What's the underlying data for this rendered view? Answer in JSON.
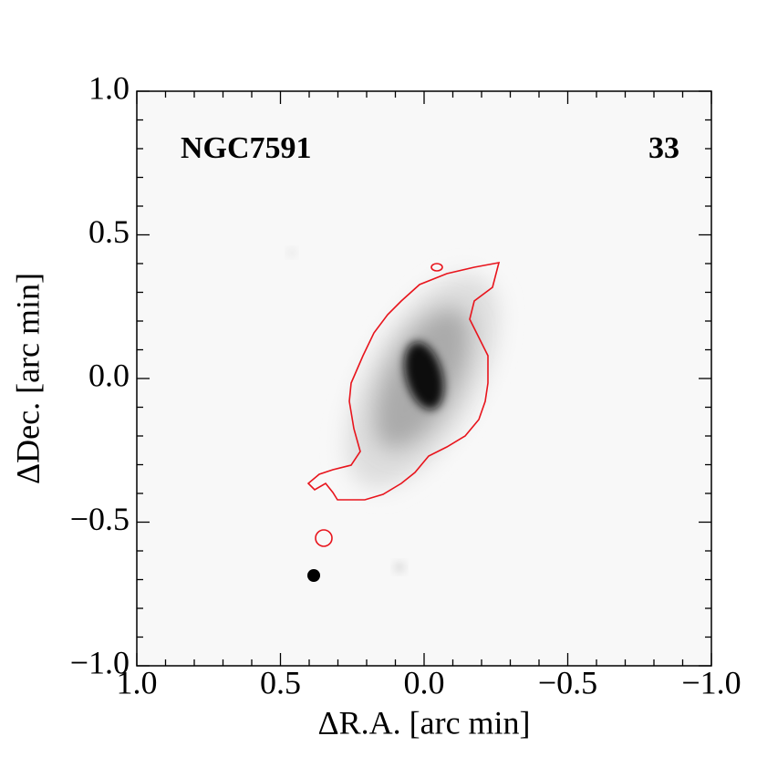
{
  "chart_data": {
    "type": "image",
    "title": "NGC7591",
    "annotation": "33",
    "xlabel": "ΔR.A. [arc min]",
    "ylabel": "ΔDec. [arc min]",
    "xlim": [
      1,
      -1
    ],
    "ylim": [
      -1,
      1
    ],
    "xticks": [
      {
        "value": 1,
        "label": "1.0"
      },
      0.5,
      {
        "value": 0,
        "label": "0.0"
      },
      {
        "value": -0.5,
        "label": "−0.5"
      },
      {
        "value": -1,
        "label": "−1.0"
      }
    ],
    "yticks": [
      {
        "value": -1,
        "label": "−1.0"
      },
      {
        "value": -0.5,
        "label": "−0.5"
      },
      {
        "value": 0,
        "label": "0.0"
      },
      0.5,
      {
        "value": 1,
        "label": "1.0"
      }
    ],
    "minor_xticks": [
      0.9,
      0.8,
      0.7,
      0.6,
      0.4,
      0.3,
      0.2,
      0.1,
      -0.1,
      -0.2,
      -0.3,
      -0.4,
      -0.6,
      -0.7,
      -0.8,
      -0.9
    ],
    "minor_yticks": [
      0.9,
      0.8,
      0.7,
      0.6,
      0.4,
      0.3,
      0.2,
      0.1,
      -0.1,
      -0.2,
      -0.3,
      -0.4,
      -0.6,
      -0.7,
      -0.8,
      -0.9
    ],
    "contour_color": "#e8141c"
  }
}
